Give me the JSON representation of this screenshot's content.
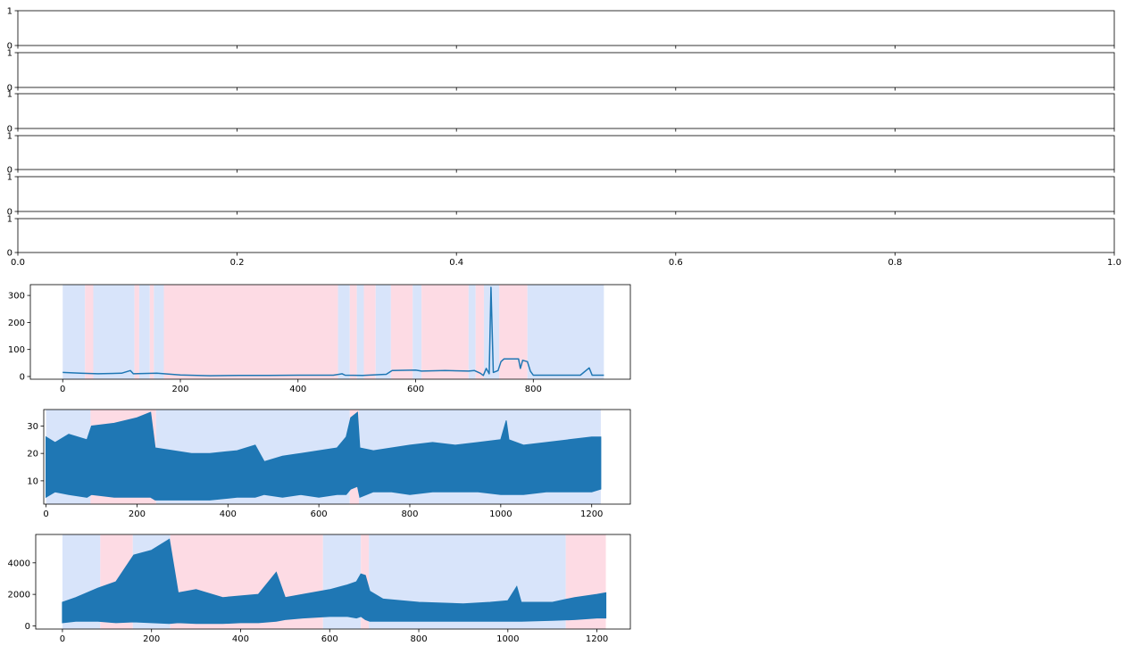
{
  "chart_data": [
    {
      "type": "line",
      "subplot": 1,
      "xlim": [
        0,
        1
      ],
      "ylim": [
        0,
        1
      ],
      "xticks": [],
      "yticks": [
        "0",
        "1"
      ],
      "series": []
    },
    {
      "type": "line",
      "subplot": 2,
      "xlim": [
        0,
        1
      ],
      "ylim": [
        0,
        1
      ],
      "xticks": [],
      "yticks": [
        "0",
        "1"
      ],
      "series": []
    },
    {
      "type": "line",
      "subplot": 3,
      "xlim": [
        0,
        1
      ],
      "ylim": [
        0,
        1
      ],
      "xticks": [],
      "yticks": [
        "0",
        "1"
      ],
      "series": []
    },
    {
      "type": "line",
      "subplot": 4,
      "xlim": [
        0,
        1
      ],
      "ylim": [
        0,
        1
      ],
      "xticks": [],
      "yticks": [
        "0",
        "1"
      ],
      "series": []
    },
    {
      "type": "line",
      "subplot": 5,
      "xlim": [
        0,
        1
      ],
      "ylim": [
        0,
        1
      ],
      "xticks": [],
      "yticks": [
        "0",
        "1"
      ],
      "series": []
    },
    {
      "type": "line",
      "subplot": 6,
      "xlim": [
        0,
        1
      ],
      "ylim": [
        0,
        1
      ],
      "xticks": [
        "0.0",
        "0.2",
        "0.4",
        "0.6",
        "0.8",
        "1.0"
      ],
      "yticks": [
        "0",
        "1"
      ],
      "series": []
    },
    {
      "type": "line",
      "subplot": 7,
      "xlim": [
        -55,
        965
      ],
      "ylim": [
        -10,
        340
      ],
      "xticks": [
        "0",
        "200",
        "400",
        "600",
        "800"
      ],
      "yticks": [
        "0",
        "100",
        "200",
        "300"
      ],
      "bands": [
        {
          "from": 0,
          "to": 38,
          "state": "blue"
        },
        {
          "from": 38,
          "to": 52,
          "state": "pink"
        },
        {
          "from": 52,
          "to": 122,
          "state": "blue"
        },
        {
          "from": 122,
          "to": 130,
          "state": "pink"
        },
        {
          "from": 130,
          "to": 148,
          "state": "blue"
        },
        {
          "from": 148,
          "to": 155,
          "state": "pink"
        },
        {
          "from": 155,
          "to": 172,
          "state": "blue"
        },
        {
          "from": 172,
          "to": 468,
          "state": "pink"
        },
        {
          "from": 468,
          "to": 488,
          "state": "blue"
        },
        {
          "from": 488,
          "to": 500,
          "state": "pink"
        },
        {
          "from": 500,
          "to": 512,
          "state": "blue"
        },
        {
          "from": 512,
          "to": 532,
          "state": "pink"
        },
        {
          "from": 532,
          "to": 558,
          "state": "blue"
        },
        {
          "from": 558,
          "to": 595,
          "state": "pink"
        },
        {
          "from": 595,
          "to": 610,
          "state": "blue"
        },
        {
          "from": 610,
          "to": 690,
          "state": "pink"
        },
        {
          "from": 690,
          "to": 702,
          "state": "blue"
        },
        {
          "from": 702,
          "to": 716,
          "state": "pink"
        },
        {
          "from": 716,
          "to": 742,
          "state": "blue"
        },
        {
          "from": 742,
          "to": 790,
          "state": "pink"
        },
        {
          "from": 790,
          "to": 920,
          "state": "blue"
        }
      ],
      "line": [
        [
          0,
          15
        ],
        [
          30,
          12
        ],
        [
          60,
          10
        ],
        [
          100,
          12
        ],
        [
          115,
          22
        ],
        [
          120,
          10
        ],
        [
          160,
          12
        ],
        [
          200,
          6
        ],
        [
          250,
          3
        ],
        [
          300,
          4
        ],
        [
          350,
          4
        ],
        [
          400,
          5
        ],
        [
          460,
          5
        ],
        [
          475,
          10
        ],
        [
          480,
          5
        ],
        [
          510,
          4
        ],
        [
          550,
          8
        ],
        [
          560,
          22
        ],
        [
          600,
          24
        ],
        [
          610,
          20
        ],
        [
          650,
          22
        ],
        [
          690,
          20
        ],
        [
          700,
          22
        ],
        [
          710,
          12
        ],
        [
          715,
          4
        ],
        [
          720,
          30
        ],
        [
          725,
          10
        ],
        [
          728,
          330
        ],
        [
          732,
          15
        ],
        [
          740,
          22
        ],
        [
          745,
          55
        ],
        [
          750,
          65
        ],
        [
          775,
          65
        ],
        [
          778,
          30
        ],
        [
          782,
          60
        ],
        [
          790,
          55
        ],
        [
          795,
          20
        ],
        [
          800,
          5
        ],
        [
          880,
          5
        ],
        [
          895,
          32
        ],
        [
          900,
          5
        ],
        [
          920,
          5
        ]
      ]
    },
    {
      "type": "line",
      "subplot": 8,
      "xlim": [
        -5,
        1285
      ],
      "ylim": [
        1.5,
        36
      ],
      "xticks": [
        "0",
        "200",
        "400",
        "600",
        "800",
        "1000",
        "1200"
      ],
      "yticks": [
        "10",
        "20",
        "30"
      ],
      "bands": [
        {
          "from": 0,
          "to": 98,
          "state": "blue"
        },
        {
          "from": 98,
          "to": 242,
          "state": "pink"
        },
        {
          "from": 242,
          "to": 668,
          "state": "blue"
        },
        {
          "from": 668,
          "to": 688,
          "state": "pink"
        },
        {
          "from": 688,
          "to": 1220,
          "state": "blue"
        }
      ],
      "envelope": {
        "x": [
          0,
          20,
          50,
          90,
          100,
          150,
          200,
          230,
          240,
          280,
          320,
          360,
          420,
          460,
          480,
          520,
          560,
          600,
          640,
          660,
          670,
          685,
          690,
          720,
          760,
          800,
          850,
          900,
          950,
          1000,
          1012,
          1018,
          1050,
          1100,
          1150,
          1200,
          1220
        ],
        "high": [
          26,
          24,
          27,
          25,
          30,
          31,
          33,
          35,
          22,
          21,
          20,
          20,
          21,
          23,
          17,
          19,
          20,
          21,
          22,
          26,
          33,
          35,
          22,
          21,
          22,
          23,
          24,
          23,
          24,
          25,
          32,
          25,
          23,
          24,
          25,
          26,
          26
        ],
        "low": [
          4,
          6,
          5,
          4,
          5,
          4,
          4,
          4,
          3,
          3,
          3,
          3,
          4,
          4,
          5,
          4,
          5,
          4,
          5,
          5,
          7,
          8,
          4,
          6,
          6,
          5,
          6,
          6,
          6,
          5,
          5,
          5,
          5,
          6,
          6,
          6,
          7
        ]
      }
    },
    {
      "type": "line",
      "subplot": 9,
      "xlim": [
        -60,
        1275
      ],
      "ylim": [
        -200,
        5800
      ],
      "xticks": [
        "0",
        "200",
        "400",
        "600",
        "800",
        "1000",
        "1200"
      ],
      "yticks": [
        "0",
        "2000",
        "4000"
      ],
      "bands": [
        {
          "from": 0,
          "to": 85,
          "state": "blue"
        },
        {
          "from": 85,
          "to": 158,
          "state": "pink"
        },
        {
          "from": 158,
          "to": 242,
          "state": "blue"
        },
        {
          "from": 242,
          "to": 585,
          "state": "pink"
        },
        {
          "from": 585,
          "to": 670,
          "state": "blue"
        },
        {
          "from": 670,
          "to": 688,
          "state": "pink"
        },
        {
          "from": 688,
          "to": 1130,
          "state": "blue"
        },
        {
          "from": 1130,
          "to": 1220,
          "state": "pink"
        }
      ],
      "envelope": {
        "x": [
          0,
          30,
          80,
          120,
          160,
          200,
          240,
          260,
          300,
          360,
          400,
          440,
          480,
          500,
          540,
          600,
          640,
          660,
          670,
          680,
          690,
          720,
          800,
          900,
          960,
          1000,
          1020,
          1030,
          1100,
          1150,
          1200,
          1220
        ],
        "high": [
          1500,
          1800,
          2400,
          2800,
          4500,
          4800,
          5500,
          2100,
          2300,
          1800,
          1900,
          2000,
          3400,
          1800,
          2000,
          2300,
          2600,
          2800,
          3300,
          3200,
          2200,
          1700,
          1500,
          1400,
          1500,
          1600,
          2500,
          1500,
          1500,
          1800,
          2000,
          2100
        ],
        "low": [
          200,
          300,
          300,
          200,
          250,
          200,
          150,
          200,
          150,
          150,
          200,
          200,
          300,
          400,
          500,
          600,
          600,
          500,
          600,
          400,
          300,
          300,
          300,
          300,
          300,
          300,
          300,
          300,
          350,
          400,
          500,
          500
        ]
      }
    }
  ]
}
